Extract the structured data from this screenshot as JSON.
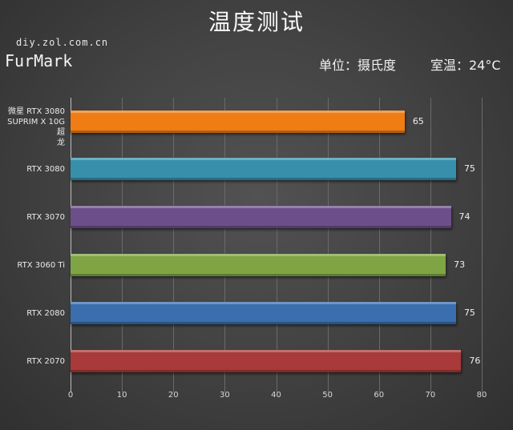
{
  "header": {
    "title": "温度测试",
    "source": "diy.zol.com.cn",
    "benchmark": "FurMark",
    "unit": "单位：摄氏度",
    "room_temp": "室温：24°C"
  },
  "chart_data": {
    "type": "bar",
    "orientation": "horizontal",
    "title": "温度测试",
    "subtitle": "FurMark",
    "xlabel": "",
    "ylabel": "",
    "unit": "摄氏度",
    "annotations": [
      "单位：摄氏度",
      "室温：24°C",
      "diy.zol.com.cn"
    ],
    "categories": [
      "微星 RTX 3080\nSUPRIM X 10G超\n龙",
      "RTX 3080",
      "RTX 3070",
      "RTX 3060 Ti",
      "RTX 2080",
      "RTX 2070"
    ],
    "values": [
      65,
      75,
      74,
      73,
      75,
      76
    ],
    "colors": [
      "#f07c14",
      "#3790ab",
      "#6c4f8a",
      "#7fa444",
      "#3a6eae",
      "#a83a39"
    ],
    "xlim": [
      0,
      80
    ],
    "xticks": [
      "0",
      "10",
      "20",
      "30",
      "40",
      "50",
      "60",
      "70",
      "80"
    ],
    "grid": true,
    "legend": null
  }
}
